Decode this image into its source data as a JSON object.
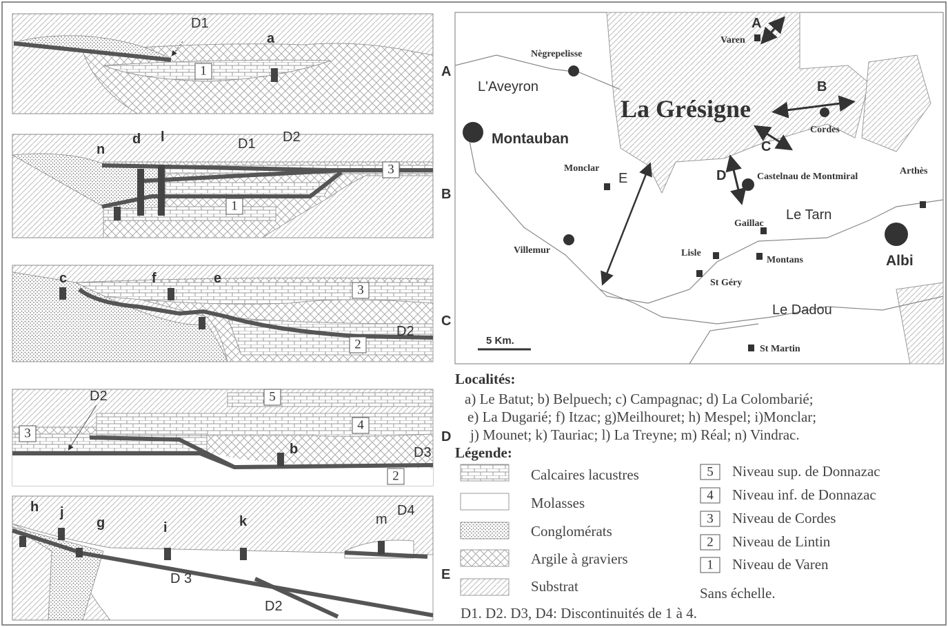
{
  "panels": [
    {
      "row": "A",
      "labels": [
        "D1",
        "a"
      ],
      "levels": [
        "1"
      ]
    },
    {
      "row": "B",
      "labels": [
        "n",
        "d",
        "l",
        "D1",
        "D2"
      ],
      "levels": [
        "3",
        "1"
      ]
    },
    {
      "row": "C",
      "labels": [
        "c",
        "f",
        "e",
        "D2"
      ],
      "levels": [
        "3",
        "2"
      ]
    },
    {
      "row": "D",
      "labels": [
        "D2",
        "b",
        "D3"
      ],
      "levels": [
        "5",
        "4",
        "3",
        "2"
      ]
    },
    {
      "row": "E",
      "labels": [
        "h",
        "j",
        "g",
        "i",
        "k",
        "m",
        "D4",
        "D 3",
        "D2"
      ],
      "levels": []
    }
  ],
  "map": {
    "title": "La Grésigne",
    "scale": "5 Km.",
    "arrows": [
      "A",
      "B",
      "C",
      "D",
      "E"
    ],
    "places": [
      "Varen",
      "Nègrepelisse",
      "Cordes",
      "Montauban",
      "Monclar",
      "Castelnau de Montmiral",
      "Arthès",
      "Gaillac",
      "Lisle",
      "Montans",
      "Albi",
      "Villemur",
      "St Géry",
      "St Martin"
    ],
    "rivers": [
      "L'Aveyron",
      "Le Tarn",
      "Le Dadou"
    ]
  },
  "localites": {
    "title": "Localités:",
    "lines": [
      "a) Le Batut; b) Belpuech; c) Campagnac; d) La Colombarié;",
      "e) La Dugarié; f) Itzac; g)Meilhouret; h) Mespel; i)Monclar;",
      "j) Mounet; k) Tauriac; l) La Treyne; m) Réal; n) Vindrac."
    ]
  },
  "legende": {
    "title": "Légende:",
    "items": [
      "Calcaires lacustres",
      "Molasses",
      "Conglomérats",
      "Argile à graviers",
      "Substrat"
    ],
    "levels": [
      {
        "number": "5",
        "label": "Niveau sup. de Donnazac"
      },
      {
        "number": "4",
        "label": "Niveau inf. de Donnazac"
      },
      {
        "number": "3",
        "label": "Niveau de Cordes"
      },
      {
        "number": "2",
        "label": "Niveau de Lintin"
      },
      {
        "number": "1",
        "label": "Niveau de Varen"
      }
    ],
    "note": "Sans échelle."
  },
  "footer": "D1. D2. D3, D4: Discontinuités de 1 à 4."
}
